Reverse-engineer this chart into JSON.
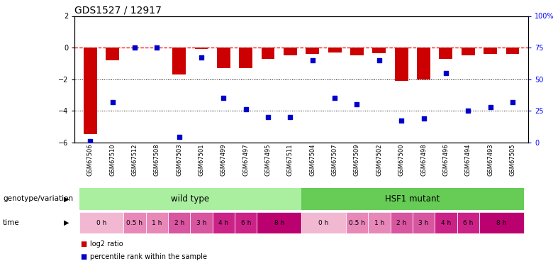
{
  "title": "GDS1527 / 12917",
  "samples": [
    "GSM67506",
    "GSM67510",
    "GSM67512",
    "GSM67508",
    "GSM67503",
    "GSM67501",
    "GSM67499",
    "GSM67497",
    "GSM67495",
    "GSM67511",
    "GSM67504",
    "GSM67507",
    "GSM67509",
    "GSM67502",
    "GSM67500",
    "GSM67498",
    "GSM67496",
    "GSM67494",
    "GSM67493",
    "GSM67505"
  ],
  "log2_ratio": [
    -5.5,
    -0.8,
    0.0,
    0.0,
    -1.7,
    -0.1,
    -1.3,
    -1.3,
    -0.7,
    -0.5,
    -0.4,
    -0.3,
    -0.5,
    -0.35,
    -2.1,
    -2.0,
    -0.7,
    -0.5,
    -0.4,
    -0.4
  ],
  "percentile": [
    1,
    32,
    75,
    75,
    4,
    67,
    35,
    26,
    20,
    20,
    65,
    35,
    30,
    65,
    17,
    19,
    55,
    25,
    28,
    32
  ],
  "bar_color": "#cc0000",
  "dot_color": "#0000cc",
  "ylim_left": [
    -6,
    2
  ],
  "ylim_right": [
    0,
    100
  ],
  "yticks_left": [
    -6,
    -4,
    -2,
    0,
    2
  ],
  "yticks_right": [
    0,
    25,
    50,
    75,
    100
  ],
  "ytick_right_labels": [
    "0",
    "25",
    "50",
    "75",
    "100%"
  ],
  "dotted_lines": [
    -2,
    -4
  ],
  "wild_type_label": "wild type",
  "hsf1_label": "HSF1 mutant",
  "wild_type_color": "#aaeea0",
  "hsf1_color": "#66cc55",
  "legend_red": "log2 ratio",
  "legend_blue": "percentile rank within the sample",
  "xlabel_genotype": "genotype/variation",
  "xlabel_time": "time",
  "background_color": "#ffffff",
  "title_fontsize": 10,
  "tick_fontsize": 7,
  "bar_width": 0.6,
  "time_segments_wt": [
    {
      "label": "0 h",
      "start": 0,
      "end": 2,
      "color": "#f2b8d2"
    },
    {
      "label": "0.5 h",
      "start": 2,
      "end": 3,
      "color": "#e888b8"
    },
    {
      "label": "1 h",
      "start": 3,
      "end": 4,
      "color": "#e888b8"
    },
    {
      "label": "2 h",
      "start": 4,
      "end": 5,
      "color": "#d855a0"
    },
    {
      "label": "3 h",
      "start": 5,
      "end": 6,
      "color": "#d855a0"
    },
    {
      "label": "4 h",
      "start": 6,
      "end": 7,
      "color": "#cc2288"
    },
    {
      "label": "6 h",
      "start": 7,
      "end": 8,
      "color": "#cc2288"
    },
    {
      "label": "8 h",
      "start": 8,
      "end": 10,
      "color": "#bb0070"
    }
  ],
  "time_segments_hsf1": [
    {
      "label": "0 h",
      "start": 10,
      "end": 12,
      "color": "#f2b8d2"
    },
    {
      "label": "0.5 h",
      "start": 12,
      "end": 13,
      "color": "#e888b8"
    },
    {
      "label": "1 h",
      "start": 13,
      "end": 14,
      "color": "#e888b8"
    },
    {
      "label": "2 h",
      "start": 14,
      "end": 15,
      "color": "#d855a0"
    },
    {
      "label": "3 h",
      "start": 15,
      "end": 16,
      "color": "#d855a0"
    },
    {
      "label": "4 h",
      "start": 16,
      "end": 17,
      "color": "#cc2288"
    },
    {
      "label": "6 h",
      "start": 17,
      "end": 18,
      "color": "#cc2288"
    },
    {
      "label": "8 h",
      "start": 18,
      "end": 20,
      "color": "#bb0070"
    }
  ]
}
